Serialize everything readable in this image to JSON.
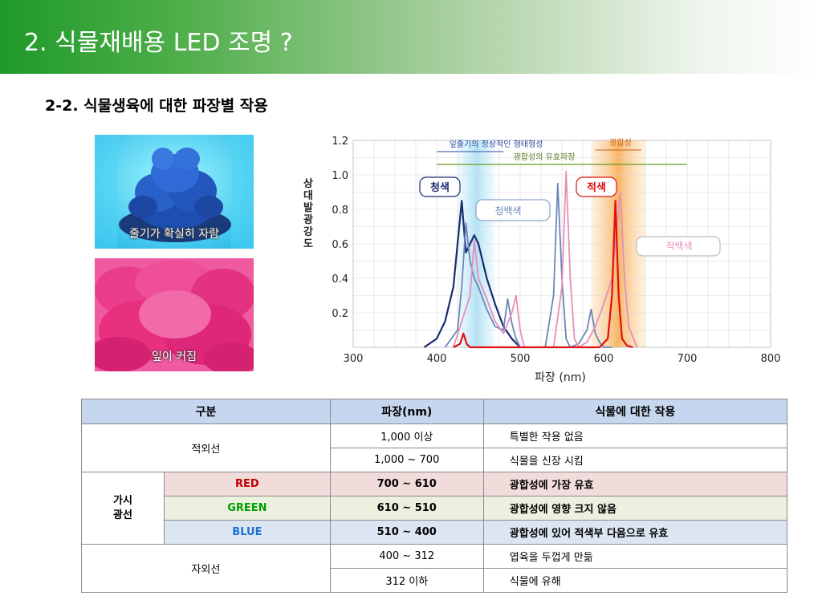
{
  "header": {
    "title": "2. 식물재배용 LED 조명 ?"
  },
  "section": {
    "subtitle": "2-2. 식물생육에 대한 파장별 작용"
  },
  "photos": [
    {
      "caption": "줄기가 확실히 자람"
    },
    {
      "caption": "잎이 커짐"
    }
  ],
  "chart_data": {
    "type": "line",
    "xlabel": "파장 (nm)",
    "ylabel": "상대발광강도",
    "xlim": [
      300,
      800
    ],
    "ylim": [
      0,
      1.2
    ],
    "x_ticks": [
      "300",
      "400",
      "500",
      "600",
      "700",
      "800"
    ],
    "y_ticks": [
      "0.2",
      "0.4",
      "0.6",
      "0.8",
      "1.0",
      "1.2"
    ],
    "grid": true,
    "annotations": {
      "band_top": "잎줄기의 정상적인 형태형성",
      "band_photo": "광합성의 유효파장",
      "band_red": "광합성",
      "blue": "청색",
      "blue_white": "청백색",
      "red": "적색",
      "red_white": "적백색"
    },
    "series": [
      {
        "name": "청색",
        "color": "#1a2a6e",
        "x": [
          385,
          400,
          410,
          420,
          425,
          430,
          435,
          440,
          445,
          450,
          455,
          460,
          470,
          480,
          490,
          500
        ],
        "y": [
          0.0,
          0.05,
          0.15,
          0.35,
          0.6,
          0.85,
          0.55,
          0.6,
          0.65,
          0.6,
          0.5,
          0.4,
          0.25,
          0.12,
          0.05,
          0.0
        ]
      },
      {
        "name": "청백색",
        "color": "#6b86b8",
        "x": [
          410,
          425,
          430,
          435,
          440,
          445,
          450,
          460,
          470,
          480,
          485,
          490,
          495,
          500,
          530,
          540,
          545,
          550,
          555,
          560,
          570,
          580,
          585,
          590,
          595,
          600,
          610
        ],
        "y": [
          0.0,
          0.1,
          0.35,
          0.72,
          0.5,
          0.4,
          0.35,
          0.22,
          0.12,
          0.1,
          0.28,
          0.14,
          0.05,
          0.0,
          0.0,
          0.3,
          0.95,
          0.4,
          0.05,
          0.0,
          0.02,
          0.1,
          0.22,
          0.08,
          0.03,
          0.0,
          0.0
        ]
      },
      {
        "name": "적백색",
        "color": "#e58fb9",
        "x": [
          420,
          440,
          445,
          450,
          460,
          470,
          480,
          490,
          495,
          500,
          505,
          540,
          550,
          555,
          560,
          565,
          570,
          580,
          590,
          600,
          610,
          615,
          620,
          625,
          630,
          640
        ],
        "y": [
          0.0,
          0.3,
          0.62,
          0.4,
          0.28,
          0.15,
          0.08,
          0.2,
          0.3,
          0.1,
          0.0,
          0.0,
          0.35,
          1.02,
          0.4,
          0.05,
          0.0,
          0.03,
          0.12,
          0.25,
          0.4,
          0.65,
          0.9,
          0.4,
          0.12,
          0.0
        ]
      },
      {
        "name": "적색",
        "color": "#e01010",
        "x": [
          420,
          428,
          432,
          436,
          440,
          595,
          605,
          610,
          614,
          618,
          622,
          628,
          635
        ],
        "y": [
          0.0,
          0.02,
          0.08,
          0.02,
          0.0,
          0.0,
          0.05,
          0.3,
          0.85,
          0.3,
          0.05,
          0.01,
          0.0
        ]
      }
    ]
  },
  "table": {
    "headers": [
      "구분",
      "파장(nm)",
      "식물에 대한 작용"
    ],
    "infrared": {
      "label": "적외선",
      "rows": [
        {
          "range": "1,000 이상",
          "effect": "특별한 작용 없음"
        },
        {
          "range": "1,000 ~ 700",
          "effect": "식물을 신장 시킴"
        }
      ]
    },
    "visible": {
      "label_line1": "가시",
      "label_line2": "광선",
      "rows": [
        {
          "band": "RED",
          "range": "700 ~ 610",
          "effect": "광합성에 가장 유효"
        },
        {
          "band": "GREEN",
          "range": "610 ~ 510",
          "effect": "광합성에 영향 크지 않음"
        },
        {
          "band": "BLUE",
          "range": "510 ~ 400",
          "effect": "광합성에 있어 적색부 다음으로 유효"
        }
      ]
    },
    "ultraviolet": {
      "label": "자외선",
      "rows": [
        {
          "range": "400 ~ 312",
          "effect": "엽육을 두껍게 만듦"
        },
        {
          "range": "312 이하",
          "effect": "식물에 유해"
        }
      ]
    }
  }
}
